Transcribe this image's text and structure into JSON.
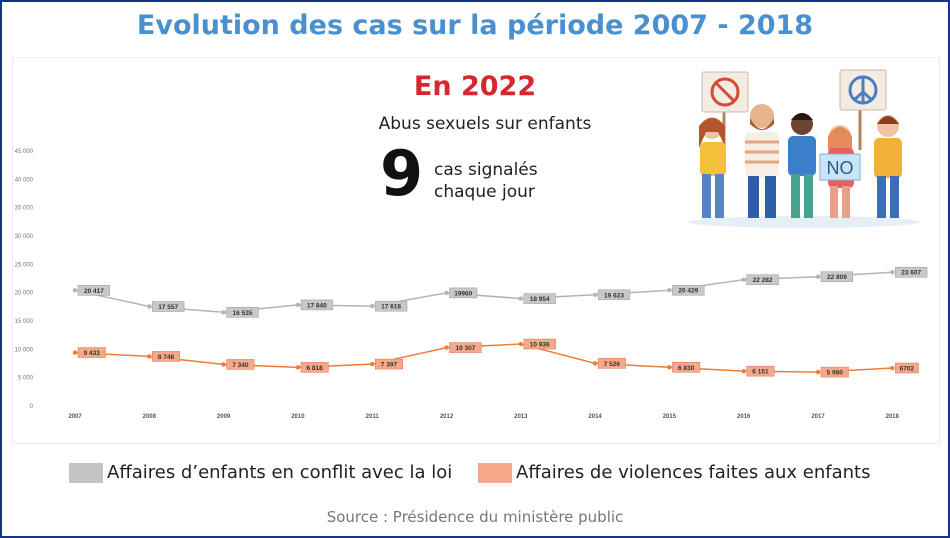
{
  "title": "Evolution des cas sur la période 2007 - 2018",
  "highlight": {
    "year_label": "En 2022",
    "subtitle": "Abus sexuels sur enfants",
    "number": "9",
    "caption_line1": "cas signalés",
    "caption_line2": "chaque jour"
  },
  "illustration": {
    "icon": "protest-crowd-illustration",
    "sign_text": "NO"
  },
  "chart_data": {
    "type": "line",
    "x": [
      "2007",
      "2008",
      "2009",
      "2010",
      "2011",
      "2012",
      "2013",
      "2014",
      "2015",
      "2016",
      "2017",
      "2018"
    ],
    "ylim": [
      0,
      45000
    ],
    "yticks": [
      0,
      5000,
      10000,
      15000,
      20000,
      25000,
      30000,
      35000,
      40000,
      45000
    ],
    "ytick_labels": [
      "0",
      "5 000",
      "10 000",
      "15 000",
      "20 000",
      "25 000",
      "30 000",
      "35 000",
      "40 000",
      "45 000"
    ],
    "grid": false,
    "legend_position": "bottom",
    "series": [
      {
        "name": "Affaires d’enfants en conflit avec la loi",
        "color": "#b4b4b4",
        "label_bg": "#c8c8c8",
        "values": [
          20417,
          17557,
          16535,
          17840,
          17618,
          19960,
          18954,
          19623,
          20429,
          22282,
          22809,
          23607
        ],
        "labels": [
          "20 417",
          "17 557",
          "16 535",
          "17 840",
          "17 618",
          "19960",
          "18 954",
          "19 623",
          "20 429",
          "22 282",
          "22 809",
          "23 607"
        ]
      },
      {
        "name": "Affaires de violences faites aux enfants",
        "color": "#ee7d3a",
        "label_bg": "#f5a98a",
        "values": [
          9433,
          8748,
          7340,
          6818,
          7397,
          10307,
          10936,
          7526,
          6830,
          6151,
          5980,
          6702
        ],
        "labels": [
          "9 433",
          "8 748",
          "7 340",
          "6 818",
          "7 397",
          "10 307",
          "10 936",
          "7 526",
          "6 830",
          "6 151",
          "5 980",
          "6702"
        ]
      }
    ]
  },
  "legend": {
    "item1_label": "Affaires d’enfants en conflit avec la loi",
    "item1_color": "#c4c4c4",
    "item2_label": "Affaires de violences faites aux enfants",
    "item2_color": "#f5a98a"
  },
  "source": "Source : Présidence du ministère public"
}
